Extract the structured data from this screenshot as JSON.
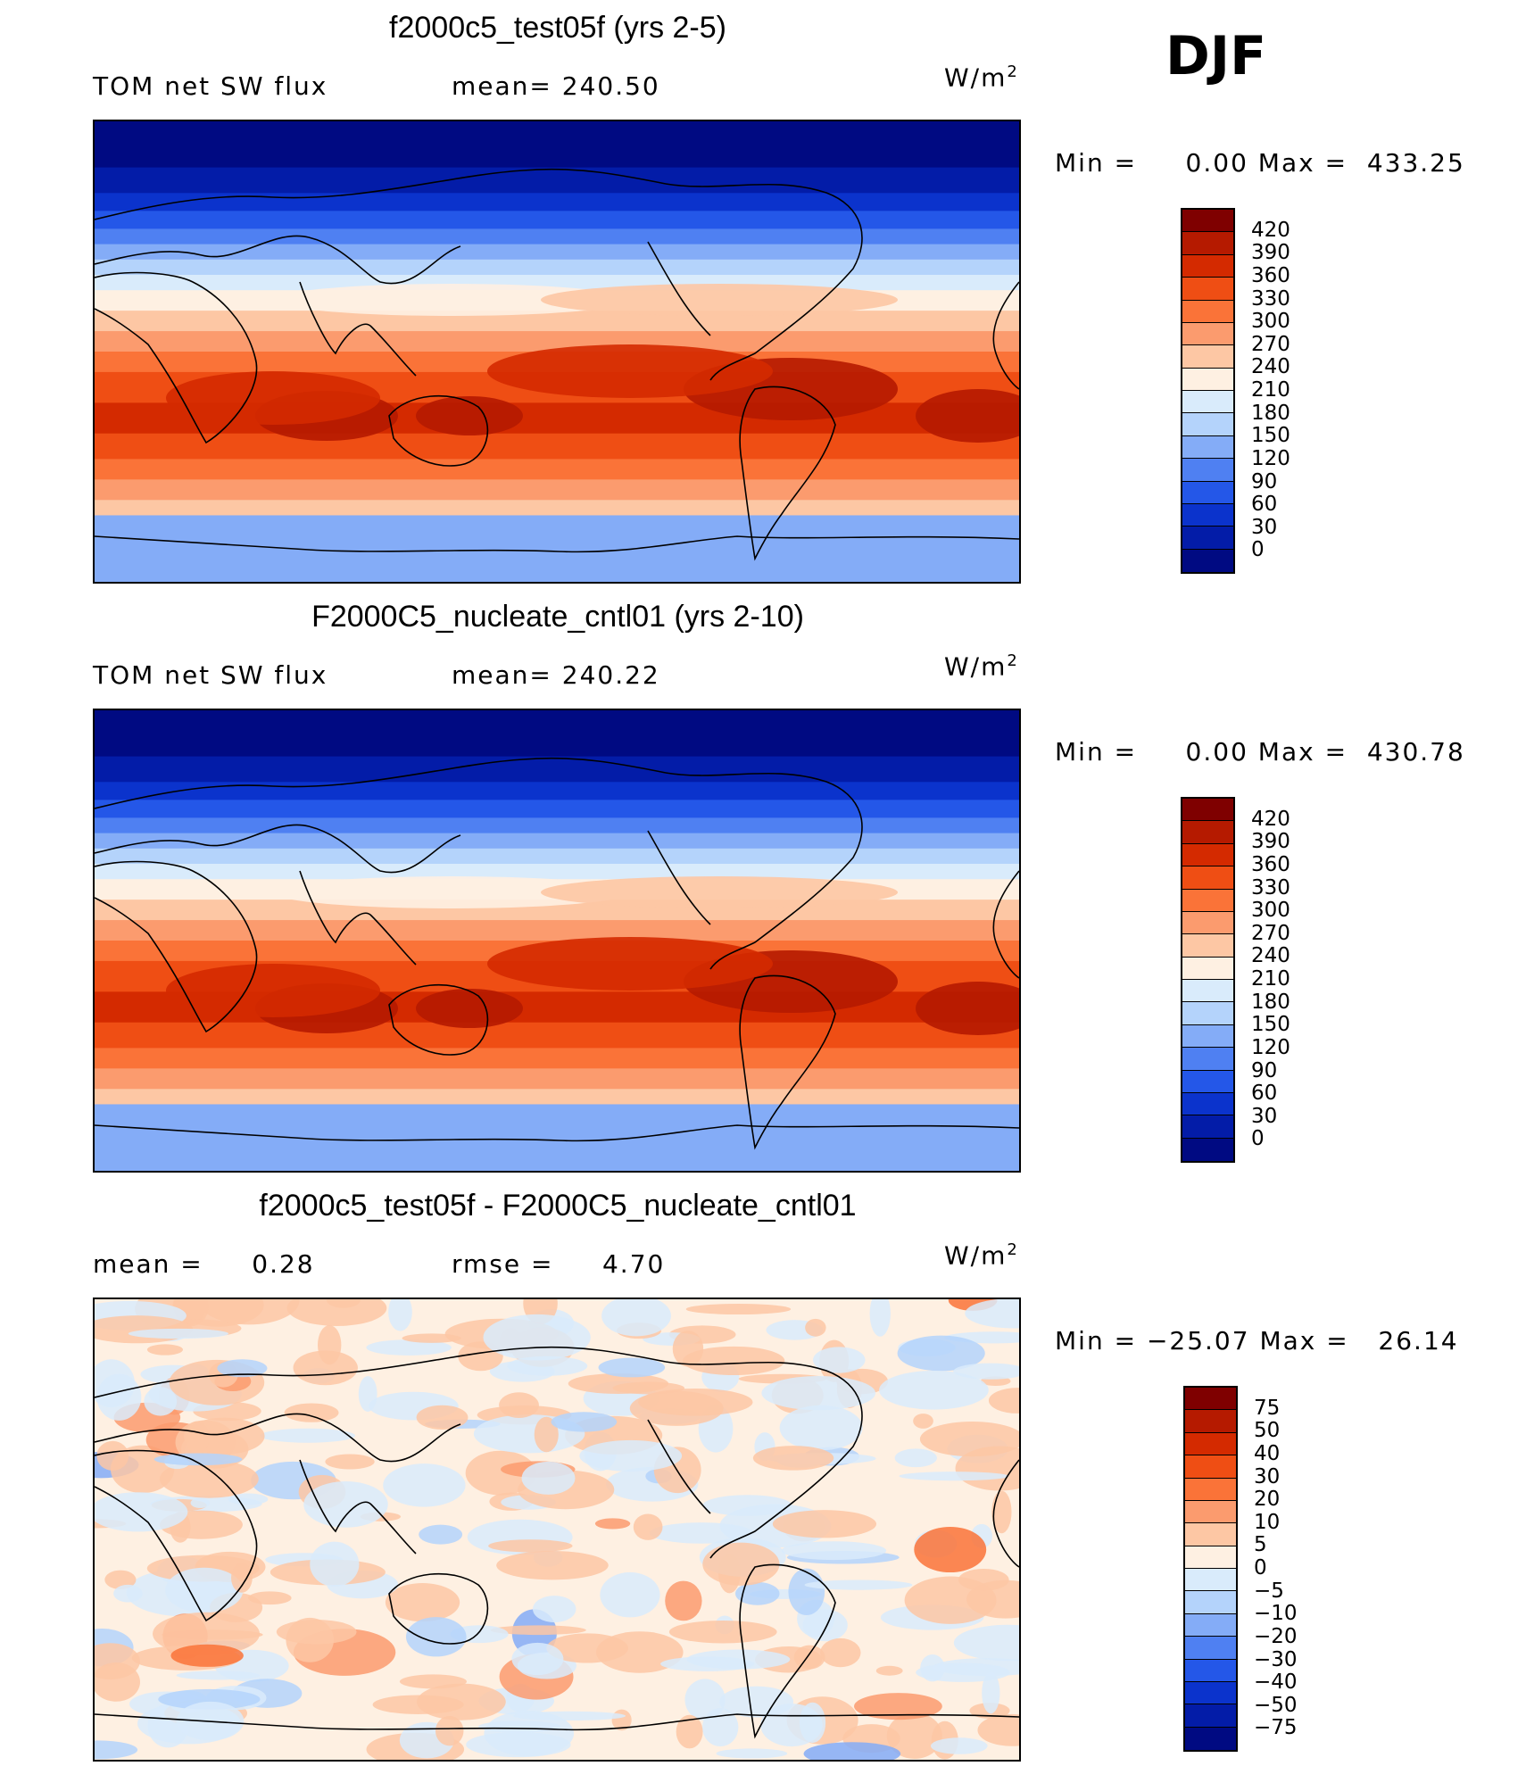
{
  "season": "DJF",
  "chart_data": [
    {
      "type": "heatmap",
      "title": "f2000c5_test05f (yrs 2-5)",
      "variable": "TOM net SW flux",
      "stat_text": "mean= 240.50",
      "units": "W/m",
      "units_sup": "2",
      "minmax_text": "Min =     0.00 Max =  433.25",
      "min": 0.0,
      "max": 433.25,
      "mean": 240.5,
      "colorbar_levels": [
        "420",
        "390",
        "360",
        "330",
        "300",
        "270",
        "240",
        "210",
        "180",
        "150",
        "120",
        "90",
        "60",
        "30",
        "0"
      ],
      "colorbar_colors": [
        "#7f0000",
        "#b51a00",
        "#d42a00",
        "#ef4e14",
        "#fa7338",
        "#fb9b6e",
        "#fdc7a4",
        "#fef0e2",
        "#d9ebfb",
        "#b4d3fb",
        "#84acf7",
        "#4f80f2",
        "#2457e8",
        "#0b33cc",
        "#031ca8",
        "#000a82"
      ]
    },
    {
      "type": "heatmap",
      "title": "F2000C5_nucleate_cntl01 (yrs 2-10)",
      "variable": "TOM net SW flux",
      "stat_text": "mean= 240.22",
      "units": "W/m",
      "units_sup": "2",
      "minmax_text": "Min =     0.00 Max =  430.78",
      "min": 0.0,
      "max": 430.78,
      "mean": 240.22,
      "colorbar_levels": [
        "420",
        "390",
        "360",
        "330",
        "300",
        "270",
        "240",
        "210",
        "180",
        "150",
        "120",
        "90",
        "60",
        "30",
        "0"
      ],
      "colorbar_colors": [
        "#7f0000",
        "#b51a00",
        "#d42a00",
        "#ef4e14",
        "#fa7338",
        "#fb9b6e",
        "#fdc7a4",
        "#fef0e2",
        "#d9ebfb",
        "#b4d3fb",
        "#84acf7",
        "#4f80f2",
        "#2457e8",
        "#0b33cc",
        "#031ca8",
        "#000a82"
      ]
    },
    {
      "type": "heatmap",
      "title": "f2000c5_test05f - F2000C5_nucleate_cntl01",
      "variable": "",
      "stat_text_mean": "mean =     0.28",
      "stat_text_rmse": "rmse =     4.70",
      "units": "W/m",
      "units_sup": "2",
      "minmax_text": "Min = −25.07 Max =   26.14",
      "min": -25.07,
      "max": 26.14,
      "mean": 0.28,
      "rmse": 4.7,
      "colorbar_levels": [
        "75",
        "50",
        "40",
        "30",
        "20",
        "10",
        "5",
        "0",
        "−5",
        "−10",
        "−20",
        "−30",
        "−40",
        "−50",
        "−75"
      ],
      "colorbar_colors": [
        "#7f0000",
        "#b51a00",
        "#d42a00",
        "#ef4e14",
        "#fa7338",
        "#fb9b6e",
        "#fdc7a4",
        "#fef0e2",
        "#d9ebfb",
        "#b4d3fb",
        "#84acf7",
        "#4f80f2",
        "#2457e8",
        "#0b33cc",
        "#031ca8",
        "#000a82"
      ]
    }
  ]
}
